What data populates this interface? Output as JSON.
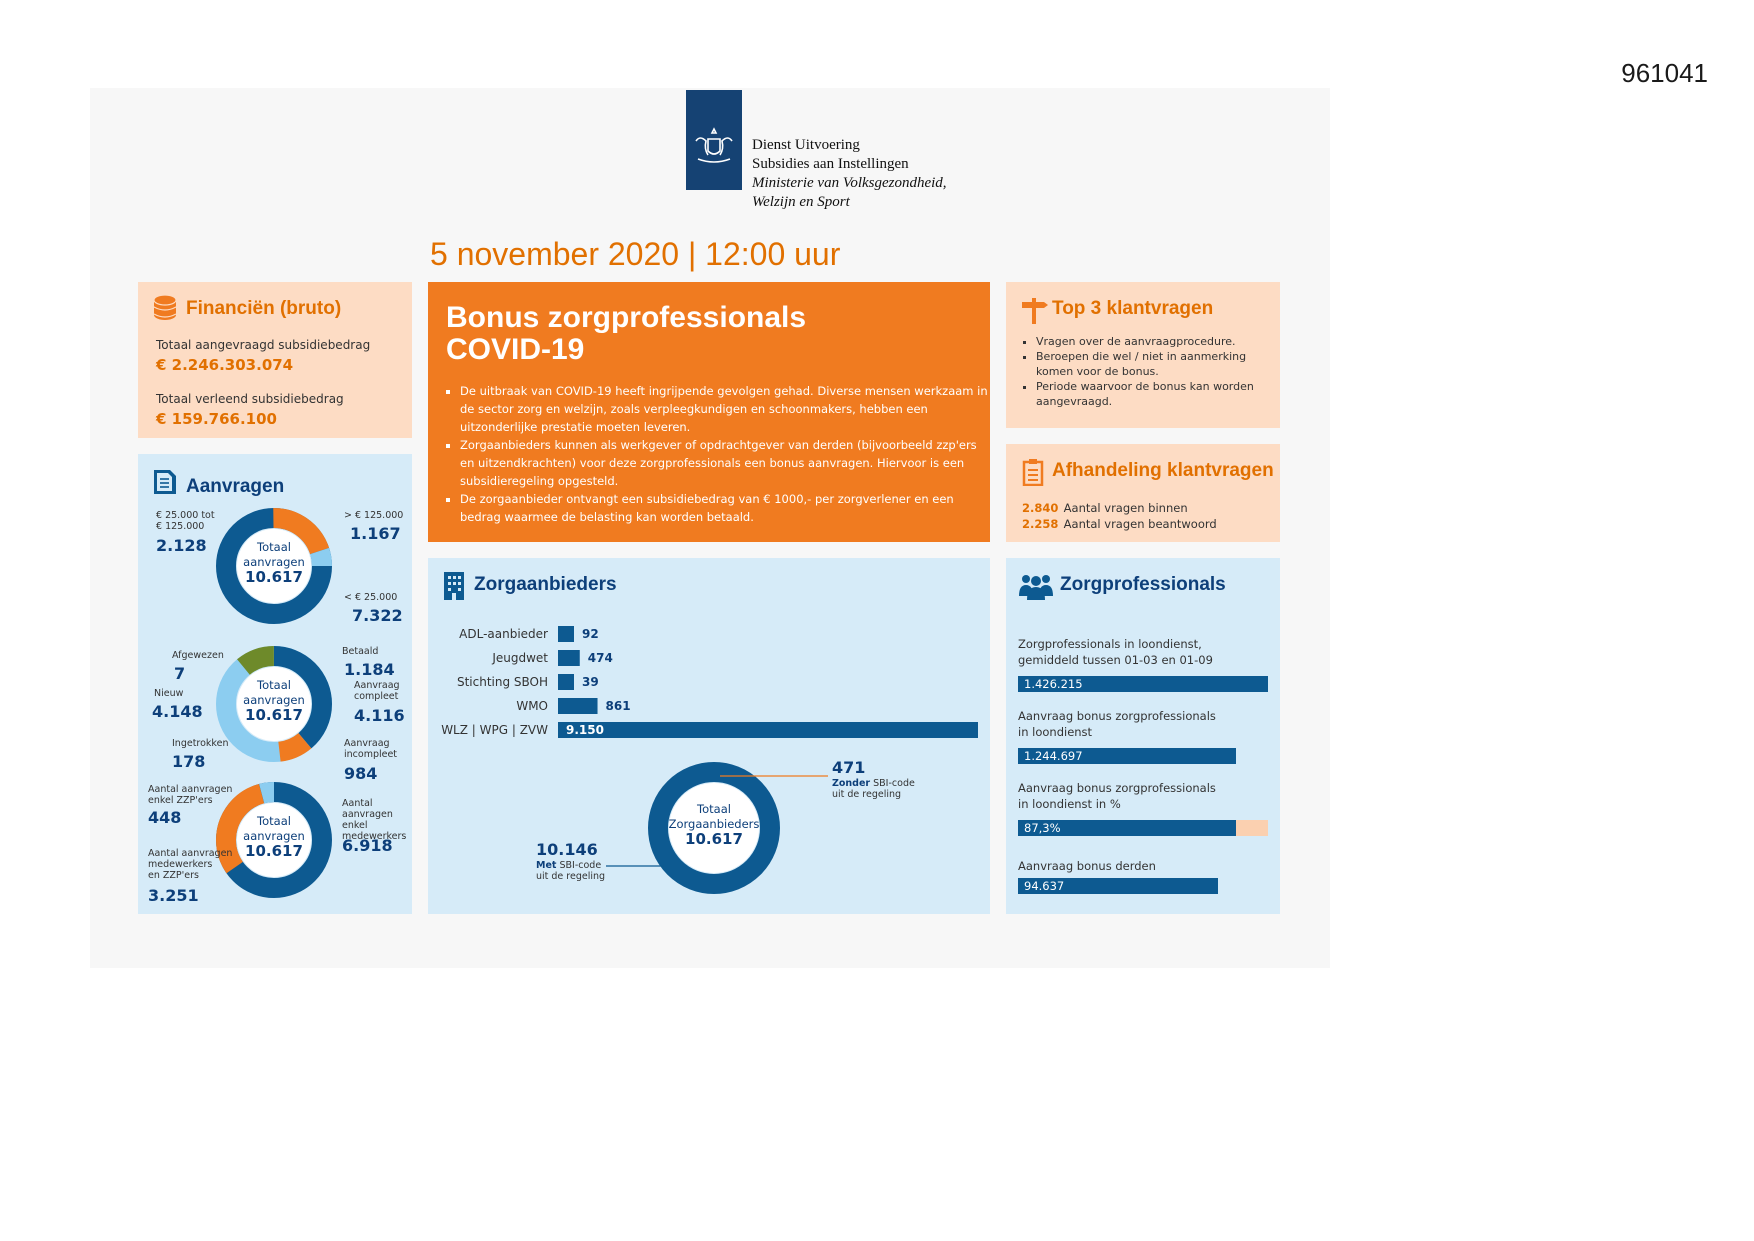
{
  "doc_id": "961041",
  "header": {
    "org_line1": "Dienst Uitvoering",
    "org_line2": "Subsidies aan Instellingen",
    "ministry_line1": "Ministerie van Volksgezondheid,",
    "ministry_line2": "Welzijn en Sport"
  },
  "date": "5 november 2020 | 12:00 uur",
  "financien": {
    "title": "Financiën (bruto)",
    "requested_label": "Totaal aangevraagd subsidiebedrag",
    "requested_value": "€  2.246.303.074",
    "granted_label": "Totaal verleend subsidiebedrag",
    "granted_value": "€  159.766.100"
  },
  "bonus": {
    "title_line1": "Bonus zorgprofessionals",
    "title_line2": "COVID-19",
    "bullets": [
      "De uitbraak van COVID-19 heeft ingrijpende gevolgen gehad. Diverse mensen werkzaam in de sector zorg en welzijn, zoals verpleegkundigen en schoonmakers, hebben een uitzonderlijke prestatie moeten leveren.",
      "Zorgaanbieders kunnen als werkgever of opdrachtgever van derden (bijvoorbeeld zzp'ers en uitzendkrachten) voor deze zorgprofessionals een bonus aanvragen. Hiervoor is een subsidieregeling opgesteld.",
      "De zorgaanbieder ontvangt een subsidiebedrag van € 1000,- per zorgverlener en een bedrag waarmee de belasting kan worden betaald."
    ]
  },
  "top3": {
    "title": "Top 3 klantvragen",
    "items": [
      "Vragen over de aanvraagprocedure.",
      "Beroepen die wel / niet in aanmerking komen voor de bonus.",
      "Periode waarvoor de bonus kan worden aangevraagd."
    ]
  },
  "afhandeling": {
    "title": "Afhandeling klantvragen",
    "rows": [
      {
        "value": "2.840",
        "label": "Aantal vragen binnen"
      },
      {
        "value": "2.258",
        "label": "Aantal vragen beantwoord"
      }
    ]
  },
  "aanvragen": {
    "title": "Aanvragen",
    "center_line1": "Totaal",
    "center_line2": "aanvragen",
    "center_value": "10.617",
    "donut1": {
      "lbl_mid_a": "€ 25.000 tot",
      "lbl_mid_b": "€ 125.000",
      "val_mid": "2.128",
      "lbl_high": "> € 125.000",
      "val_high": "1.167",
      "lbl_low": "< € 25.000",
      "val_low": "7.322"
    },
    "donut2": {
      "lbl_afgewezen": "Afgewezen",
      "val_afgewezen": "7",
      "lbl_betaald": "Betaald",
      "val_betaald": "1.184",
      "lbl_nieuw": "Nieuw",
      "val_nieuw": "4.148",
      "lbl_compleet_a": "Aanvraag",
      "lbl_compleet_b": "compleet",
      "val_compleet": "4.116",
      "lbl_ingetrokken": "Ingetrokken",
      "val_ingetrokken": "178",
      "lbl_incompleet_a": "Aanvraag",
      "lbl_incompleet_b": "incompleet",
      "val_incompleet": "984"
    },
    "donut3": {
      "lbl_zzp_a": "Aantal aanvragen",
      "lbl_zzp_b": "enkel ZZP'ers",
      "val_zzp": "448",
      "lbl_mw_a": "Aantal",
      "lbl_mw_b": "aanvragen enkel",
      "lbl_mw_c": "medewerkers",
      "val_mw": "6.918",
      "lbl_both_a": "Aantal aanvragen",
      "lbl_both_b": "medewerkers",
      "lbl_both_c": "en ZZP'ers",
      "val_both": "3.251"
    }
  },
  "zorgaanbieders": {
    "title": "Zorgaanbieders",
    "center_line1": "Totaal",
    "center_line2": "Zorgaanbieders",
    "center_value": "10.617",
    "zonder_value": "471",
    "zonder_bold": "Zonder",
    "zonder_rest": " SBI-code",
    "zonder_line2": "uit de regeling",
    "met_value": "10.146",
    "met_bold": "Met",
    "met_rest": " SBI-code",
    "met_line2": "uit de regeling"
  },
  "chart_data": [
    {
      "type": "bar",
      "orientation": "horizontal",
      "categories": [
        "ADL-aanbieder",
        "Jeugdwet",
        "Stichting SBOH",
        "WMO",
        "WLZ | WPG | ZVW"
      ],
      "values": [
        92,
        474,
        39,
        861,
        9150
      ],
      "labels": [
        "92",
        "474",
        "39",
        "861",
        "9.150"
      ]
    }
  ],
  "zorgprofessionals": {
    "title": "Zorgprofessionals",
    "items": [
      {
        "label1": "Zorgprofessionals in loondienst,",
        "label2": "gemiddeld tussen 01-03 en 01-09",
        "value": "1.426.215",
        "fill": 1.0
      },
      {
        "label1": "Aanvraag bonus zorgprofessionals",
        "label2": "in loondienst",
        "value": "1.244.697",
        "fill": 0.873
      },
      {
        "label1": "Aanvraag bonus zorgprofessionals",
        "label2": "in loondienst in %",
        "value": "87,3%",
        "fill": 0.873
      },
      {
        "label1": "Aanvraag bonus derden",
        "label2": "",
        "value": "94.637",
        "fill": 0.8
      }
    ]
  },
  "colors": {
    "orange": "#f07b20",
    "dark_blue": "#0d5a91",
    "light_blue": "#8ccdf0",
    "olive": "#6e8a2a",
    "peach": "#fddcc4",
    "pale_blue": "#d6ebf8"
  }
}
